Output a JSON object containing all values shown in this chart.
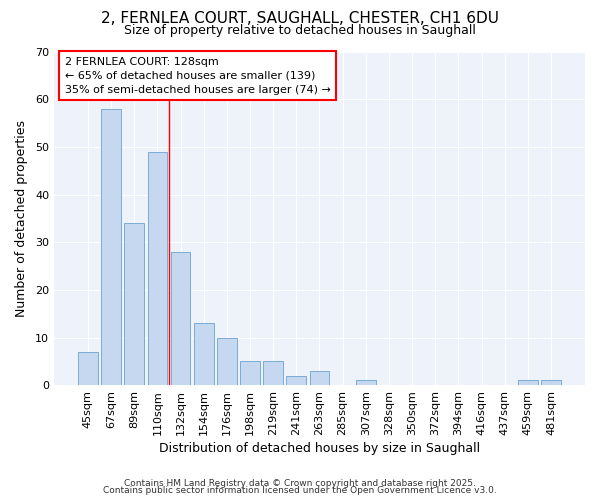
{
  "title_line1": "2, FERNLEA COURT, SAUGHALL, CHESTER, CH1 6DU",
  "title_line2": "Size of property relative to detached houses in Saughall",
  "xlabel": "Distribution of detached houses by size in Saughall",
  "ylabel": "Number of detached properties",
  "fig_background_color": "#ffffff",
  "axes_background_color": "#eef2fb",
  "bar_color": "#c5d8f0",
  "bar_edge_color": "#7aadd4",
  "grid_color": "#ffffff",
  "categories": [
    "45sqm",
    "67sqm",
    "89sqm",
    "110sqm",
    "132sqm",
    "154sqm",
    "176sqm",
    "198sqm",
    "219sqm",
    "241sqm",
    "263sqm",
    "285sqm",
    "307sqm",
    "328sqm",
    "350sqm",
    "372sqm",
    "394sqm",
    "416sqm",
    "437sqm",
    "459sqm",
    "481sqm"
  ],
  "values": [
    7,
    58,
    34,
    49,
    28,
    13,
    10,
    5,
    5,
    2,
    3,
    0,
    1,
    0,
    0,
    0,
    0,
    0,
    0,
    1,
    1
  ],
  "red_line_index": 4,
  "annotation_title": "2 FERNLEA COURT: 128sqm",
  "annotation_line1": "← 65% of detached houses are smaller (139)",
  "annotation_line2": "35% of semi-detached houses are larger (74) →",
  "footer_line1": "Contains HM Land Registry data © Crown copyright and database right 2025.",
  "footer_line2": "Contains public sector information licensed under the Open Government Licence v3.0.",
  "ylim": [
    0,
    70
  ],
  "yticks": [
    0,
    10,
    20,
    30,
    40,
    50,
    60,
    70
  ],
  "title_fontsize": 11,
  "subtitle_fontsize": 9,
  "axis_label_fontsize": 9,
  "tick_fontsize": 8,
  "annotation_fontsize": 8,
  "footer_fontsize": 6.5
}
